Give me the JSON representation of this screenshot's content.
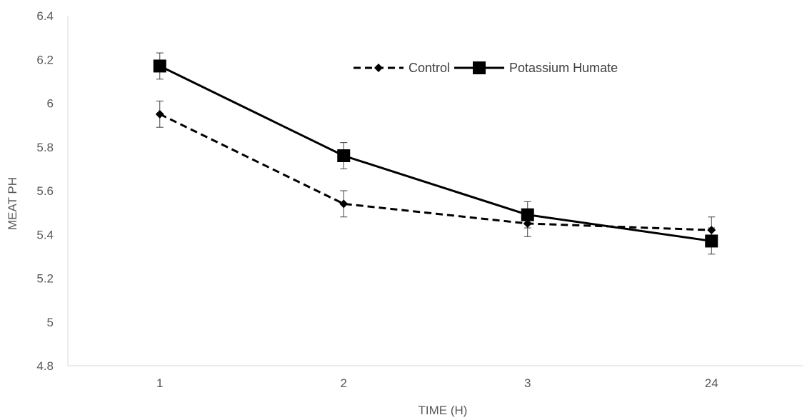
{
  "chart_data": {
    "type": "line",
    "title": "",
    "xlabel": "TIME (H)",
    "ylabel": "MEAT PH",
    "categories": [
      "1",
      "2",
      "3",
      "24"
    ],
    "ylim": [
      4.8,
      6.4
    ],
    "yticks": [
      "4.8",
      "5",
      "5.2",
      "5.4",
      "5.6",
      "5.8",
      "6",
      "6.2",
      "6.4"
    ],
    "grid": false,
    "legend_position": "top-center",
    "series": [
      {
        "name": "Control",
        "values": [
          5.95,
          5.54,
          5.45,
          5.42
        ],
        "error": [
          0.06,
          0.06,
          0.06,
          0.06
        ],
        "line_style": "dashed",
        "marker": "diamond",
        "color": "#000000"
      },
      {
        "name": "Potassium Humate",
        "values": [
          6.17,
          5.76,
          5.49,
          5.37
        ],
        "error": [
          0.06,
          0.06,
          0.06,
          0.06
        ],
        "line_style": "solid",
        "marker": "square",
        "color": "#000000"
      }
    ]
  }
}
